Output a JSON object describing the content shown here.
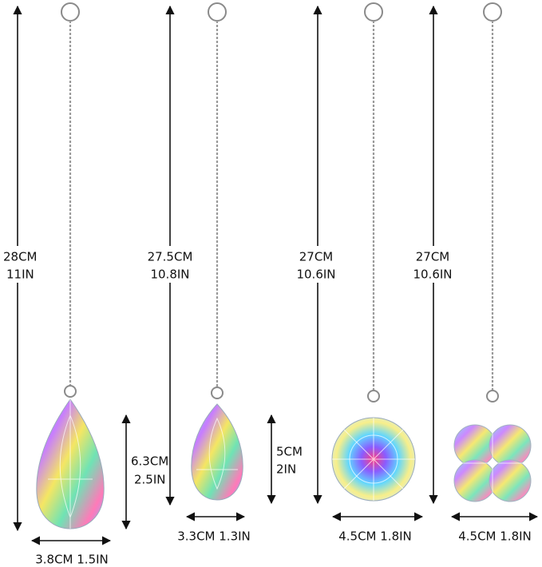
{
  "items": [
    {
      "length_cm": "28CM",
      "length_in": "11IN",
      "height_cm": "6.3CM",
      "height_in": "2.5IN",
      "width": "3.8CM 1.5IN"
    },
    {
      "length_cm": "27.5CM",
      "length_in": "10.8IN",
      "height_cm": "5CM",
      "height_in": "2IN",
      "width": "3.3CM 1.3IN"
    },
    {
      "length_cm": "27CM",
      "length_in": "10.6IN",
      "width": "4.5CM 1.8IN"
    },
    {
      "length_cm": "27CM",
      "length_in": "10.6IN",
      "width": "4.5CM 1.8IN"
    }
  ]
}
